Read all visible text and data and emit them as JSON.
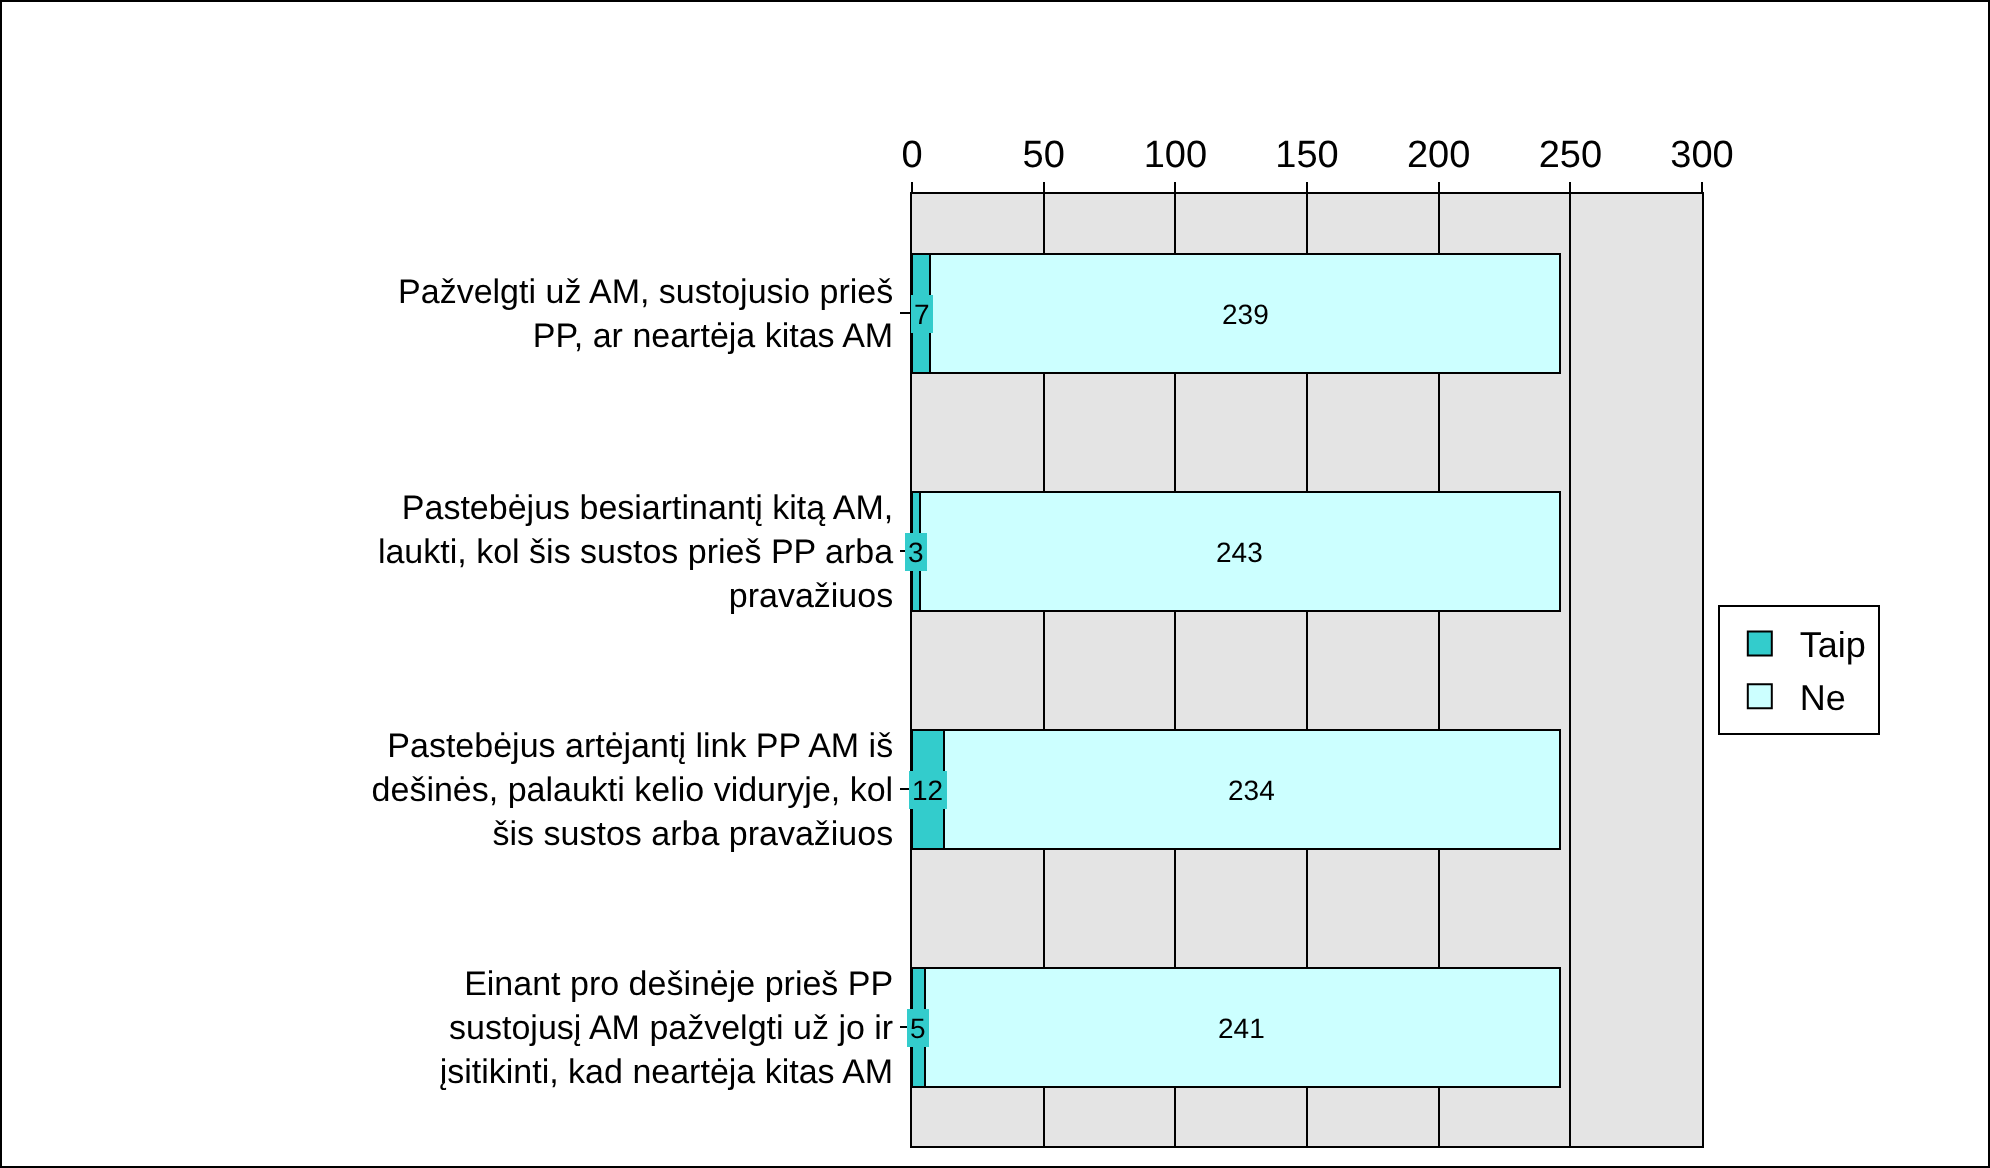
{
  "chart_data": {
    "type": "bar",
    "orientation": "horizontal",
    "stacked": true,
    "categories": [
      "Pažvelgti už AM, sustojusio prieš\nPP, ar neartėja kitas AM",
      "Pastebėjus besiartinantį kitą AM,\nlaukti, kol šis sustos prieš PP arba\npravažiuos",
      "Pastebėjus artėjantį link PP AM iš\ndešinės, palaukti kelio viduryje, kol\nšis sustos arba pravažiuos",
      "Einant pro dešinėje prieš PP\nsustojusį AM pažvelgti už jo ir\nįsitikinti, kad neartėja kitas AM"
    ],
    "series": [
      {
        "name": "Taip",
        "color": "#33cccc",
        "values": [
          7,
          3,
          12,
          5
        ]
      },
      {
        "name": "Ne",
        "color": "#ccffff",
        "values": [
          239,
          243,
          234,
          241
        ]
      }
    ],
    "xlim": [
      0,
      300
    ],
    "xticks": [
      0,
      50,
      100,
      150,
      200,
      250,
      300
    ],
    "grid": "x",
    "legend": "right",
    "data_labels": true
  }
}
